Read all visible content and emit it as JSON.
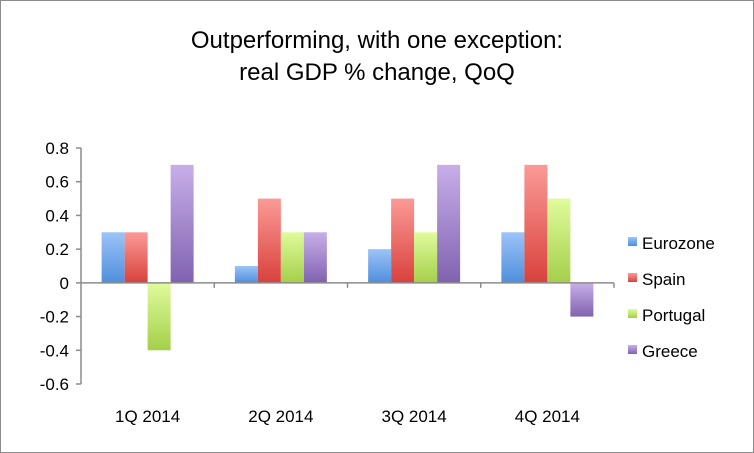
{
  "chart_data": {
    "type": "bar",
    "title": "Outperforming, with one exception:",
    "subtitle": "real GDP % change, QoQ",
    "xlabel": "",
    "ylabel": "",
    "categories": [
      "1Q 2014",
      "2Q 2014",
      "3Q 2014",
      "4Q 2014"
    ],
    "series": [
      {
        "name": "Eurozone",
        "color": "#4f8fdc",
        "color_light": "#9cc3f7",
        "values": [
          0.3,
          0.1,
          0.2,
          0.3
        ]
      },
      {
        "name": "Spain",
        "color": "#d9413c",
        "color_light": "#fb9a96",
        "values": [
          0.3,
          0.5,
          0.5,
          0.7
        ]
      },
      {
        "name": "Portugal",
        "color": "#a4cf4a",
        "color_light": "#e0fb9c",
        "values": [
          -0.4,
          0.3,
          0.3,
          0.5
        ]
      },
      {
        "name": "Greece",
        "color": "#8062b0",
        "color_light": "#c8aee9",
        "values": [
          0.7,
          0.3,
          0.7,
          -0.2
        ]
      }
    ],
    "ylim": [
      -0.6,
      0.8
    ],
    "yticks": [
      "0.8",
      "0.6",
      "0.4",
      "0.2",
      "0",
      "-0.2",
      "-0.4",
      "-0.6"
    ],
    "ytick_values": [
      0.8,
      0.6,
      0.4,
      0.2,
      0,
      -0.2,
      -0.4,
      -0.6
    ],
    "grid": false,
    "legend_position": "right"
  }
}
